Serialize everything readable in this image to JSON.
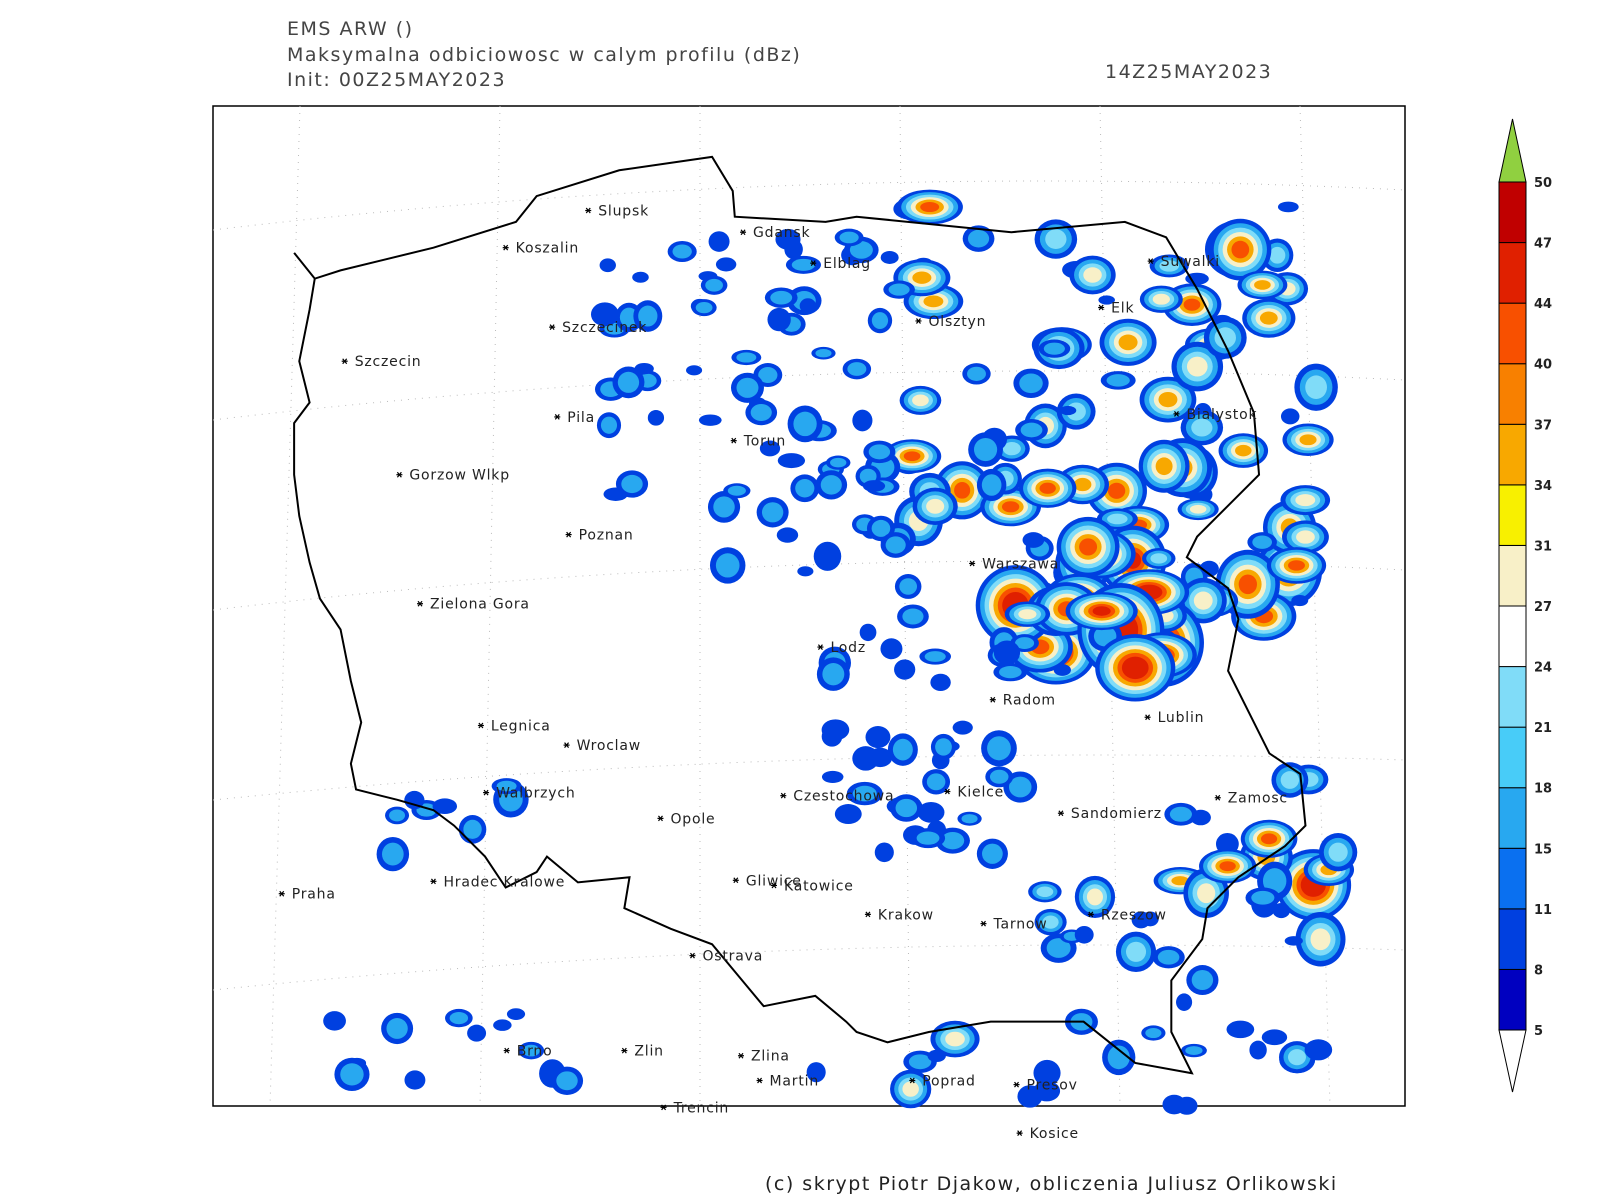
{
  "header": {
    "model": "EMS ARW ()",
    "title": "Maksymalna odbiciowosc w calym profilu (dBz)",
    "init": "Init: 00Z25MAY2023",
    "valid": "14Z25MAY2023"
  },
  "cities": [
    "Slupsk",
    "Gdansk",
    "Koszalin",
    "Elblag",
    "Szczecinek",
    "Olsztyn",
    "Suwalki",
    "Elk",
    "Szczecin",
    "Pila",
    "Torun",
    "Bialystok",
    "Gorzow Wlkp",
    "Poznan",
    "Warszawa",
    "Zielona Gora",
    "Lodz",
    "Radom",
    "Lublin",
    "Legnica",
    "Wroclaw",
    "Walbrzych",
    "Czestochowa",
    "Kielce",
    "Zamosc",
    "Opole",
    "Sandomierz",
    "Hradec Kralowe",
    "Praha",
    "Gliwice",
    "Katowice",
    "Krakow",
    "Tarnow",
    "Rzeszow",
    "Ostrava",
    "Brno",
    "Zlin",
    "Zlina",
    "Martin",
    "Poprad",
    "Presov",
    "Trencin",
    "Kosice"
  ],
  "colorbar": {
    "levels": [
      5,
      8,
      11,
      15,
      18,
      21,
      24,
      27,
      31,
      34,
      37,
      40,
      44,
      47,
      50
    ],
    "colors": [
      "#0000c0",
      "#0040e0",
      "#0a70f0",
      "#28a8f0",
      "#48ccf8",
      "#80dcf8",
      "#ffffff",
      "#f8f0c8",
      "#f8f000",
      "#f8a800",
      "#f88000",
      "#f85000",
      "#e02000",
      "#c00000"
    ],
    "under_color": "#ffffff",
    "over_color": "#90d040"
  },
  "footer": "(c) skrypt Piotr Djakow, obliczenia Juliusz Orlikowski"
}
